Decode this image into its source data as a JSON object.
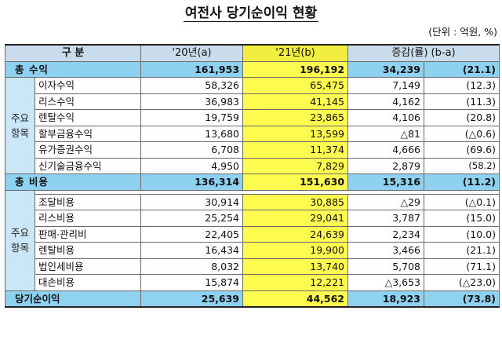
{
  "title": "여전사 당기순이익 현황",
  "unit": "(단위 : 억원, %)",
  "header": {
    "category": "구  분",
    "y2020": "'20년(a)",
    "y2021": "'21년(b)",
    "change": "증감(률) (b-a)"
  },
  "revenue_total": {
    "label": "총 수익",
    "a": "161,953",
    "b": "196,192",
    "diff": "34,239",
    "rate": "(21.1)"
  },
  "revenue_group": "주요\n항목",
  "revenue_items": [
    {
      "label": "이자수익",
      "a": "58,326",
      "b": "65,475",
      "diff": "7,149",
      "rate": "(12.3)"
    },
    {
      "label": "리스수익",
      "a": "36,983",
      "b": "41,145",
      "diff": "4,162",
      "rate": "(11.3)"
    },
    {
      "label": "렌탈수익",
      "a": "19,759",
      "b": "23,865",
      "diff": "4,106",
      "rate": "(20.8)"
    },
    {
      "label": "할부금융수익",
      "a": "13,680",
      "b": "13,599",
      "diff": "△81",
      "rate": "(△0.6)"
    },
    {
      "label": "유가증권수익",
      "a": "6,708",
      "b": "11,374",
      "diff": "4,666",
      "rate": "(69.6)"
    },
    {
      "label": "신기술금융수익",
      "a": "4,950",
      "b": "7,829",
      "diff": "2,879",
      "rate": "(58.2)"
    }
  ],
  "expense_total": {
    "label": "총 비용",
    "a": "136,314",
    "b": "151,630",
    "diff": "15,316",
    "rate": "(11.2)"
  },
  "expense_group": "주요\n항목",
  "expense_items": [
    {
      "label": "조달비용",
      "a": "30,914",
      "b": "30,885",
      "diff": "△29",
      "rate": "(△0.1)"
    },
    {
      "label": "리스비용",
      "a": "25,254",
      "b": "29,041",
      "diff": "3,787",
      "rate": "(15.0)"
    },
    {
      "label": "판매·관리비",
      "a": "22,405",
      "b": "24,639",
      "diff": "2,234",
      "rate": "(10.0)"
    },
    {
      "label": "렌탈비용",
      "a": "16,434",
      "b": "19,900",
      "diff": "3,466",
      "rate": "(21.1)"
    },
    {
      "label": "법인세비용",
      "a": "8,032",
      "b": "13,740",
      "diff": "5,708",
      "rate": "(71.1)"
    },
    {
      "label": "대손비용",
      "a": "15,874",
      "b": "12,221",
      "diff": "△3,653",
      "rate": "(△23.0)"
    }
  ],
  "net_income": {
    "label": "당기순이익",
    "a": "25,639",
    "b": "44,562",
    "diff": "18,923",
    "rate": "(73.8)"
  },
  "colors": {
    "header_bg": "#c9dcec",
    "total_bg": "#8fd1f1",
    "highlight": "#fdfb4f",
    "group_bg": "#c9e7f7"
  }
}
